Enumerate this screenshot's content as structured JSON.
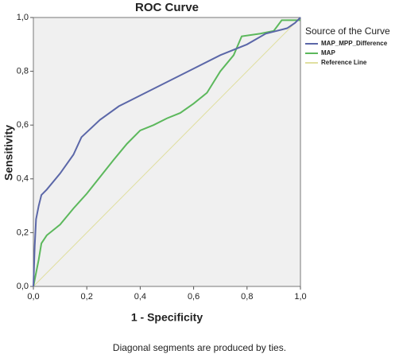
{
  "chart_data": {
    "type": "line",
    "title": "ROC Curve",
    "x_label": "1 - Specificity",
    "y_label": "Sensitivity",
    "legend_title": "Source of the Curve",
    "footnote": "Diagonal segments are produced by ties.",
    "xlim": [
      0,
      1
    ],
    "ylim": [
      0,
      1
    ],
    "xticks": [
      {
        "value": 0,
        "label": "0,0"
      },
      {
        "value": 0.2,
        "label": "0,2"
      },
      {
        "value": 0.4,
        "label": "0,4"
      },
      {
        "value": 0.6,
        "label": "0,6"
      },
      {
        "value": 0.8,
        "label": "0,8"
      },
      {
        "value": 1,
        "label": "1,0"
      }
    ],
    "yticks": [
      {
        "value": 0,
        "label": "0,0"
      },
      {
        "value": 0.2,
        "label": "0,2"
      },
      {
        "value": 0.4,
        "label": "0,4"
      },
      {
        "value": 0.6,
        "label": "0,6"
      },
      {
        "value": 0.8,
        "label": "0,8"
      },
      {
        "value": 1,
        "label": "1,0"
      }
    ],
    "series": [
      {
        "name": "MAP_MPP_Difference",
        "color": "#5b67a8",
        "x": [
          0,
          0.005,
          0.01,
          0.02,
          0.03,
          0.05,
          0.1,
          0.15,
          0.18,
          0.25,
          0.32,
          0.4,
          0.5,
          0.6,
          0.7,
          0.8,
          0.87,
          0.95,
          0.98,
          1
        ],
        "values": [
          0,
          0.15,
          0.25,
          0.3,
          0.34,
          0.36,
          0.42,
          0.49,
          0.555,
          0.62,
          0.67,
          0.71,
          0.76,
          0.81,
          0.86,
          0.9,
          0.94,
          0.96,
          0.98,
          1
        ]
      },
      {
        "name": "MAP",
        "color": "#5cb85c",
        "x": [
          0,
          0.01,
          0.02,
          0.03,
          0.05,
          0.1,
          0.15,
          0.2,
          0.3,
          0.35,
          0.4,
          0.45,
          0.5,
          0.55,
          0.6,
          0.65,
          0.7,
          0.75,
          0.78,
          0.85,
          0.9,
          0.93,
          1
        ],
        "values": [
          0,
          0.05,
          0.1,
          0.16,
          0.19,
          0.23,
          0.29,
          0.345,
          0.47,
          0.53,
          0.58,
          0.6,
          0.625,
          0.645,
          0.68,
          0.72,
          0.8,
          0.86,
          0.93,
          0.94,
          0.95,
          0.99,
          0.99
        ]
      },
      {
        "name": "Reference Line",
        "color": "#e0dfa0",
        "x": [
          0,
          1
        ],
        "values": [
          0,
          1
        ]
      }
    ]
  }
}
